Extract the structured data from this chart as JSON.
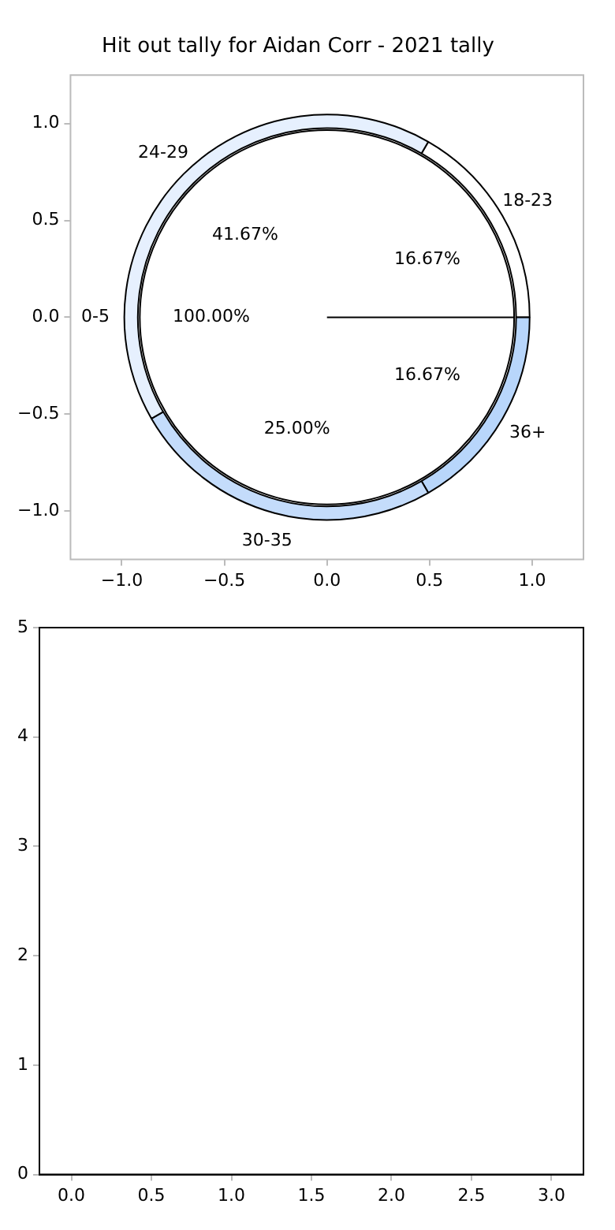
{
  "chart_data": [
    {
      "type": "scatter",
      "title": "Hit out tally for Aidan Corr - 2021 tally",
      "xlim": [
        -1.25,
        1.25
      ],
      "ylim": [
        -1.25,
        1.25
      ],
      "xticks": [
        {
          "value": -1,
          "label": "−1.0"
        },
        {
          "value": -0.5,
          "label": "−0.5"
        },
        {
          "value": 0,
          "label": "0.0"
        },
        {
          "value": 0.5,
          "label": "0.5"
        },
        {
          "value": 1,
          "label": "1.0"
        }
      ],
      "yticks": [
        {
          "value": -1,
          "label": "−1.0"
        },
        {
          "value": -0.5,
          "label": "−0.5"
        },
        {
          "value": 0,
          "label": "0.0"
        },
        {
          "value": 0.5,
          "label": "0.5"
        },
        {
          "value": 1,
          "label": "1.0"
        }
      ]
    },
    {
      "type": "donut",
      "categories": [
        "18-23",
        "36+",
        "30-35",
        "24-29"
      ],
      "values": [
        16.67,
        16.67,
        25,
        41.67
      ],
      "value_labels": [
        "16.67%",
        "16.67%",
        "25.00%",
        "41.67%"
      ],
      "colors": [
        "#ffffff",
        "#b8d6fb",
        "#c4dcfb",
        "#e6f0fe"
      ]
    },
    {
      "type": "pie",
      "categories": [
        "0-5"
      ],
      "values": [
        100
      ],
      "value_labels": [
        "100.00%"
      ],
      "colors": [
        "#ffffff"
      ]
    },
    {
      "type": "scatter",
      "xlim": [
        -0.2,
        3.2
      ],
      "ylim": [
        0,
        5
      ],
      "xticks": [
        {
          "value": 0,
          "label": "0.0"
        },
        {
          "value": 0.5,
          "label": "0.5"
        },
        {
          "value": 1,
          "label": "1.0"
        },
        {
          "value": 1.5,
          "label": "1.5"
        },
        {
          "value": 2,
          "label": "2.0"
        },
        {
          "value": 2.5,
          "label": "2.5"
        },
        {
          "value": 3,
          "label": "3.0"
        }
      ],
      "yticks": [
        0,
        1,
        2,
        3,
        4,
        5
      ]
    }
  ]
}
